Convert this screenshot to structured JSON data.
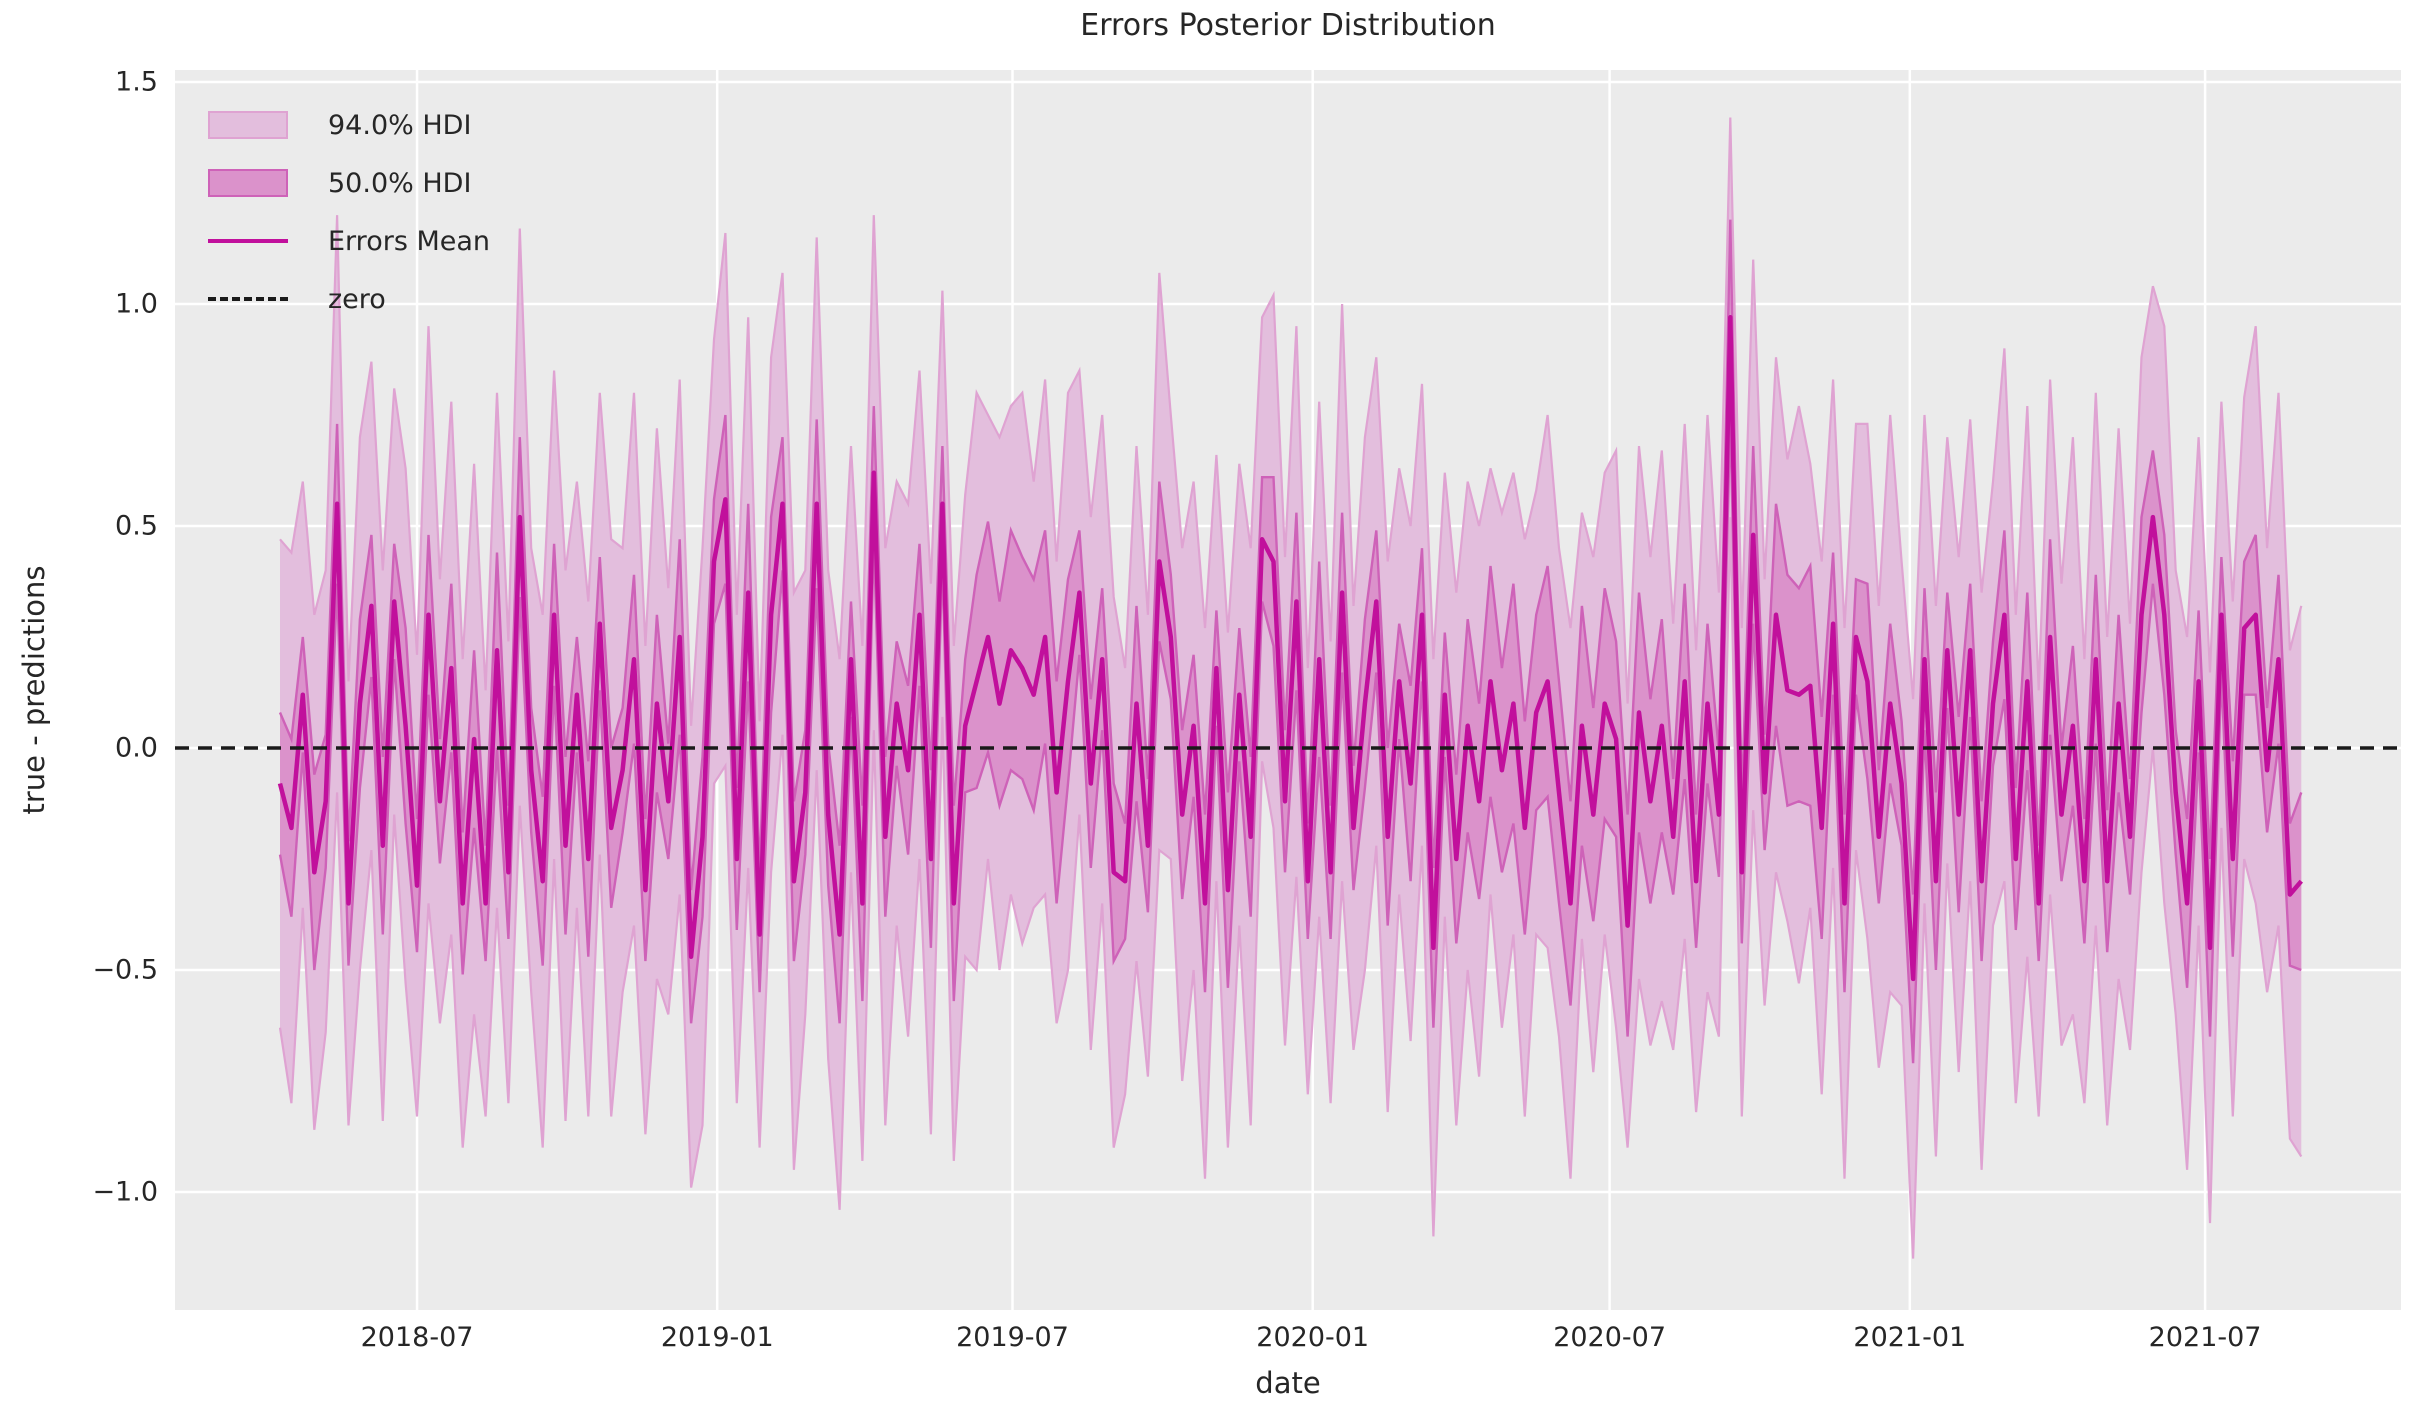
{
  "title": "Errors Posterior Distribution",
  "axes": {
    "x_label": "date",
    "y_label": "true - predictions",
    "x_ticks": [
      {
        "label": "2018-07",
        "date": "2018-07-01"
      },
      {
        "label": "2019-01",
        "date": "2019-01-01"
      },
      {
        "label": "2019-07",
        "date": "2019-07-01"
      },
      {
        "label": "2020-01",
        "date": "2020-01-01"
      },
      {
        "label": "2020-07",
        "date": "2020-07-01"
      },
      {
        "label": "2021-01",
        "date": "2021-01-01"
      },
      {
        "label": "2021-07",
        "date": "2021-07-01"
      }
    ],
    "y_ticks": [
      {
        "label": "1.5",
        "value": 1.5
      },
      {
        "label": "1.0",
        "value": 1.0
      },
      {
        "label": "0.5",
        "value": 0.5
      },
      {
        "label": "0.0",
        "value": 0.0
      },
      {
        "label": "−0.5",
        "value": -0.5
      },
      {
        "label": "−1.0",
        "value": -1.0
      }
    ]
  },
  "legend": {
    "items": [
      {
        "label": "94.0% HDI",
        "kind": "band",
        "color_key": "band94"
      },
      {
        "label": "50.0% HDI",
        "kind": "band",
        "color_key": "band50"
      },
      {
        "label": "Errors Mean",
        "kind": "line",
        "color_key": "mean_line"
      },
      {
        "label": "zero",
        "kind": "dashed-line",
        "color_key": "zero_line"
      }
    ]
  },
  "colors": {
    "figure_bg": "#ffffff",
    "axes_bg": "#ebebeb",
    "grid": "#ffffff",
    "band94": "#e3bedd",
    "band94_edge": "#dfa3d2",
    "band50": "#db92cb",
    "band50_edge": "#ce62b8",
    "mean_line": "#c1109c",
    "zero_line": "#1a1a1a",
    "text": "#262626"
  },
  "chart_data": {
    "type": "line",
    "title": "Errors Posterior Distribution",
    "xlabel": "date",
    "ylabel": "true - predictions",
    "ylim": [
      -1.28,
      1.53
    ],
    "x_start_date": "2018-04-08",
    "x_end_date": "2021-08-29",
    "x_step_days": 7,
    "n_points": 178,
    "grid": true,
    "legend_position": "upper left",
    "zero_reference": 0.0,
    "series": [
      {
        "name": "Errors Mean"
      },
      {
        "name": "94.0% HDI band"
      },
      {
        "name": "50.0% HDI band"
      }
    ],
    "mean": [
      -0.08,
      -0.18,
      0.12,
      -0.28,
      -0.12,
      0.55,
      -0.35,
      0.1,
      0.32,
      -0.22,
      0.33,
      0.05,
      -0.31,
      0.3,
      -0.12,
      0.18,
      -0.35,
      0.02,
      -0.35,
      0.22,
      -0.28,
      0.52,
      -0.05,
      -0.3,
      0.3,
      -0.22,
      0.12,
      -0.25,
      0.28,
      -0.18,
      -0.05,
      0.2,
      -0.32,
      0.1,
      -0.12,
      0.25,
      -0.47,
      -0.2,
      0.42,
      0.56,
      -0.25,
      0.35,
      -0.42,
      0.3,
      0.55,
      -0.3,
      -0.1,
      0.55,
      -0.15,
      -0.42,
      0.2,
      -0.35,
      0.62,
      -0.2,
      0.1,
      -0.05,
      0.3,
      -0.25,
      0.55,
      -0.35,
      0.05,
      0.15,
      0.25,
      0.1,
      0.22,
      0.18,
      0.12,
      0.25,
      -0.1,
      0.15,
      0.35,
      -0.08,
      0.2,
      -0.28,
      -0.3,
      0.1,
      -0.22,
      0.42,
      0.25,
      -0.15,
      0.05,
      -0.35,
      0.18,
      -0.32,
      0.12,
      -0.2,
      0.47,
      0.42,
      -0.12,
      0.33,
      -0.3,
      0.2,
      -0.28,
      0.35,
      -0.18,
      0.1,
      0.33,
      -0.2,
      0.15,
      -0.08,
      0.3,
      -0.45,
      0.12,
      -0.25,
      0.05,
      -0.12,
      0.15,
      -0.05,
      0.1,
      -0.18,
      0.08,
      0.15,
      -0.1,
      -0.35,
      0.05,
      -0.15,
      0.1,
      0.02,
      -0.4,
      0.08,
      -0.12,
      0.05,
      -0.2,
      0.15,
      -0.3,
      0.1,
      -0.15,
      0.97,
      -0.28,
      0.48,
      -0.1,
      0.3,
      0.13,
      0.12,
      0.14,
      -0.18,
      0.28,
      -0.35,
      0.25,
      0.15,
      -0.2,
      0.1,
      -0.08,
      -0.52,
      0.2,
      -0.3,
      0.22,
      -0.15,
      0.22,
      -0.3,
      0.1,
      0.3,
      -0.25,
      0.15,
      -0.35,
      0.25,
      -0.15,
      0.05,
      -0.3,
      0.2,
      -0.3,
      0.1,
      -0.2,
      0.3,
      0.52,
      0.3,
      -0.1,
      -0.35,
      0.15,
      -0.45,
      0.3,
      -0.25,
      0.27,
      0.3,
      -0.05,
      0.2,
      -0.33,
      -0.3
    ],
    "hdi94_halfwidth": [
      0.55,
      0.62,
      0.48,
      0.58,
      0.52,
      0.65,
      0.5,
      0.6,
      0.55,
      0.62,
      0.48,
      0.58,
      0.52,
      0.65,
      0.5,
      0.6,
      0.55,
      0.62,
      0.48,
      0.58,
      0.52,
      0.65,
      0.5,
      0.6,
      0.55,
      0.62,
      0.48,
      0.58,
      0.52,
      0.65,
      0.5,
      0.6,
      0.55,
      0.62,
      0.48,
      0.58,
      0.52,
      0.65,
      0.5,
      0.6,
      0.55,
      0.62,
      0.48,
      0.58,
      0.52,
      0.65,
      0.5,
      0.6,
      0.55,
      0.62,
      0.48,
      0.58,
      0.58,
      0.65,
      0.5,
      0.6,
      0.55,
      0.62,
      0.48,
      0.58,
      0.52,
      0.65,
      0.5,
      0.6,
      0.55,
      0.62,
      0.48,
      0.58,
      0.52,
      0.65,
      0.5,
      0.6,
      0.55,
      0.62,
      0.48,
      0.58,
      0.52,
      0.65,
      0.5,
      0.6,
      0.55,
      0.62,
      0.48,
      0.58,
      0.52,
      0.65,
      0.5,
      0.6,
      0.55,
      0.62,
      0.48,
      0.58,
      0.52,
      0.65,
      0.5,
      0.6,
      0.55,
      0.62,
      0.48,
      0.58,
      0.52,
      0.65,
      0.5,
      0.6,
      0.55,
      0.62,
      0.48,
      0.58,
      0.52,
      0.65,
      0.5,
      0.6,
      0.55,
      0.62,
      0.48,
      0.58,
      0.52,
      0.65,
      0.5,
      0.6,
      0.55,
      0.62,
      0.48,
      0.58,
      0.52,
      0.65,
      0.5,
      0.45,
      0.55,
      0.62,
      0.48,
      0.58,
      0.52,
      0.65,
      0.5,
      0.6,
      0.55,
      0.62,
      0.48,
      0.58,
      0.52,
      0.65,
      0.5,
      0.63,
      0.55,
      0.62,
      0.48,
      0.58,
      0.52,
      0.65,
      0.5,
      0.6,
      0.55,
      0.62,
      0.48,
      0.58,
      0.52,
      0.65,
      0.5,
      0.6,
      0.55,
      0.62,
      0.48,
      0.58,
      0.52,
      0.65,
      0.5,
      0.6,
      0.55,
      0.62,
      0.48,
      0.58,
      0.52,
      0.65,
      0.5,
      0.6,
      0.55,
      0.62
    ],
    "hdi50_halfwidth": [
      0.16,
      0.2,
      0.13,
      0.22,
      0.15,
      0.18,
      0.14,
      0.19,
      0.16,
      0.2,
      0.13,
      0.22,
      0.15,
      0.18,
      0.14,
      0.19,
      0.16,
      0.2,
      0.13,
      0.22,
      0.15,
      0.18,
      0.14,
      0.19,
      0.16,
      0.2,
      0.13,
      0.22,
      0.15,
      0.18,
      0.14,
      0.19,
      0.16,
      0.2,
      0.13,
      0.22,
      0.15,
      0.18,
      0.14,
      0.19,
      0.16,
      0.2,
      0.13,
      0.22,
      0.15,
      0.18,
      0.14,
      0.19,
      0.16,
      0.2,
      0.13,
      0.22,
      0.15,
      0.18,
      0.14,
      0.19,
      0.16,
      0.2,
      0.13,
      0.22,
      0.15,
      0.24,
      0.26,
      0.23,
      0.27,
      0.25,
      0.26,
      0.24,
      0.25,
      0.23,
      0.14,
      0.19,
      0.16,
      0.2,
      0.13,
      0.22,
      0.15,
      0.18,
      0.14,
      0.19,
      0.16,
      0.2,
      0.13,
      0.22,
      0.15,
      0.18,
      0.14,
      0.19,
      0.16,
      0.2,
      0.13,
      0.22,
      0.15,
      0.18,
      0.14,
      0.19,
      0.16,
      0.2,
      0.13,
      0.22,
      0.15,
      0.18,
      0.14,
      0.19,
      0.24,
      0.22,
      0.26,
      0.23,
      0.27,
      0.24,
      0.22,
      0.26,
      0.25,
      0.23,
      0.27,
      0.24,
      0.26,
      0.22,
      0.25,
      0.27,
      0.23,
      0.24,
      0.13,
      0.22,
      0.15,
      0.18,
      0.14,
      0.22,
      0.16,
      0.2,
      0.13,
      0.25,
      0.26,
      0.24,
      0.27,
      0.25,
      0.16,
      0.2,
      0.13,
      0.22,
      0.15,
      0.18,
      0.14,
      0.19,
      0.16,
      0.2,
      0.13,
      0.22,
      0.15,
      0.18,
      0.14,
      0.19,
      0.16,
      0.2,
      0.13,
      0.22,
      0.15,
      0.18,
      0.14,
      0.19,
      0.16,
      0.2,
      0.13,
      0.22,
      0.15,
      0.18,
      0.14,
      0.19,
      0.16,
      0.2,
      0.13,
      0.22,
      0.15,
      0.18,
      0.14,
      0.19,
      0.16,
      0.2
    ]
  }
}
